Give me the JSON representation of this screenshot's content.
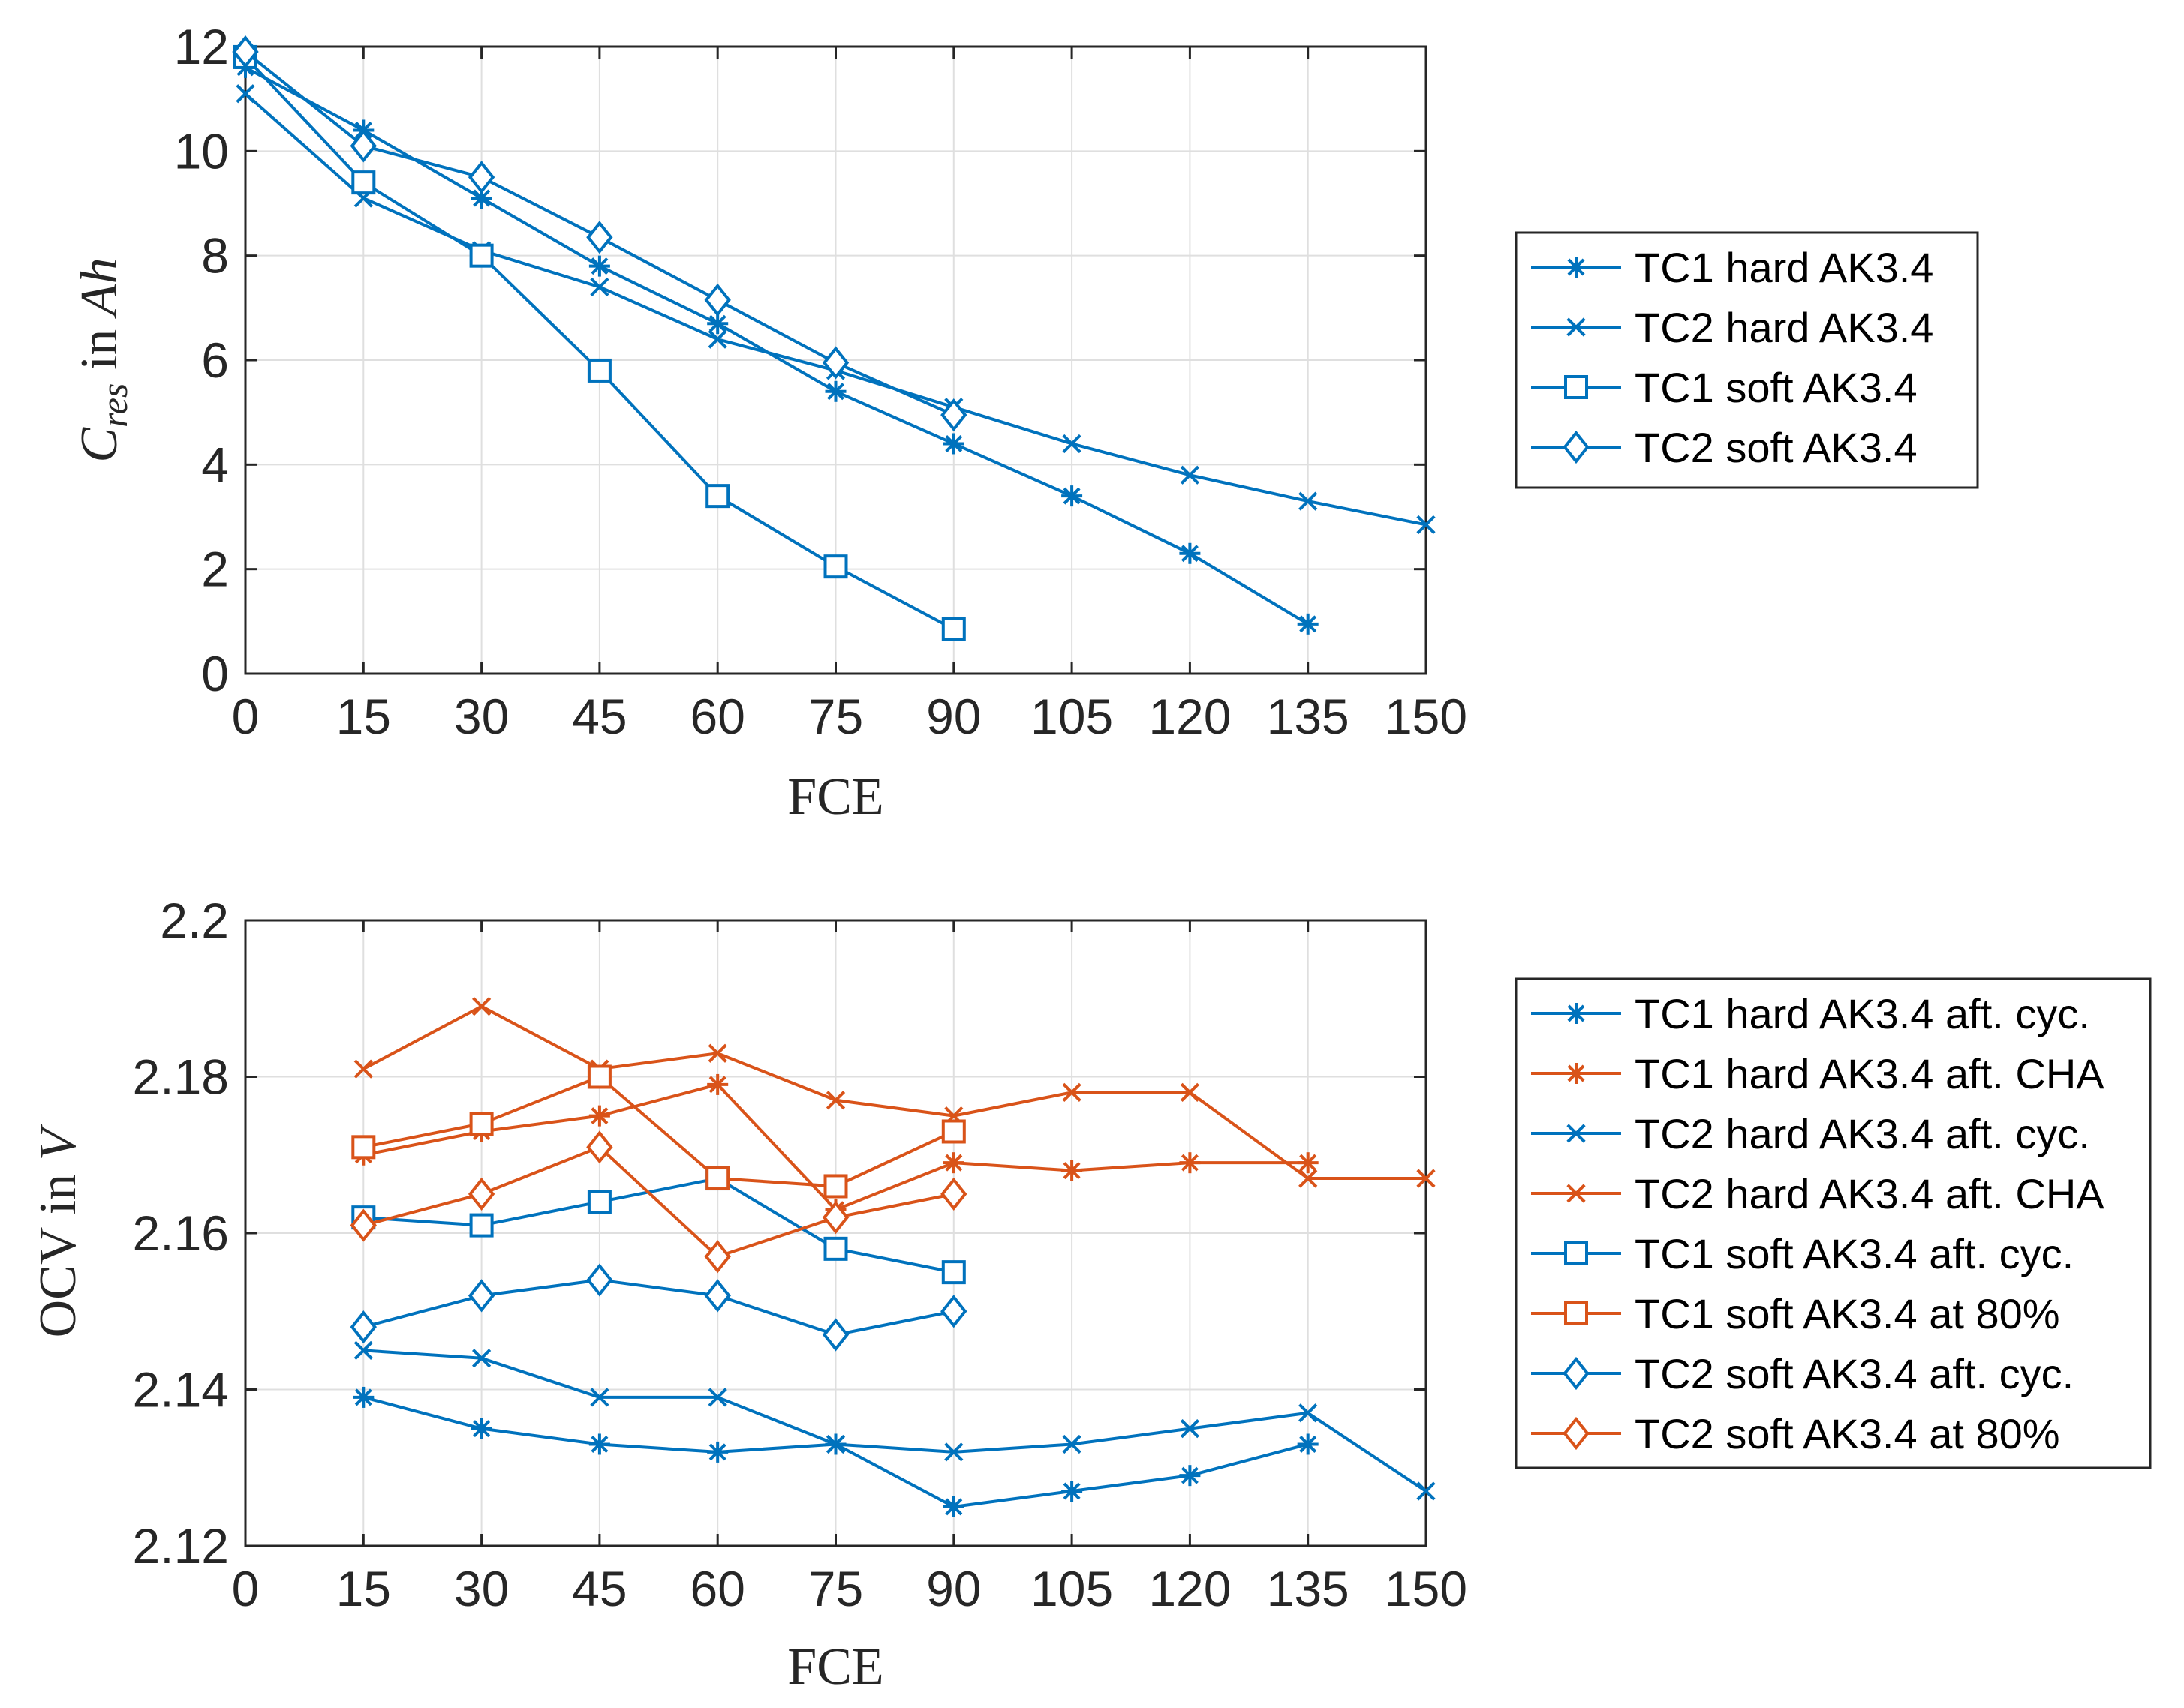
{
  "colors": {
    "blue": "#0072BD",
    "orange": "#D95319"
  },
  "chart_data": [
    {
      "type": "line",
      "xlabel": "FCE",
      "ylabel": {
        "symbol": "C",
        "subscript": "res",
        "mid": " in ",
        "unit": "Ah"
      },
      "xlim": [
        0,
        150
      ],
      "ylim": [
        0,
        12
      ],
      "xticks": [
        0,
        15,
        30,
        45,
        60,
        75,
        90,
        105,
        120,
        135,
        150
      ],
      "yticks": [
        0,
        2,
        4,
        6,
        8,
        10,
        12
      ],
      "ytick_labels": [
        "0",
        "2",
        "4",
        "6",
        "8",
        "10",
        "12"
      ],
      "grid": true,
      "legend_position": "right",
      "series": [
        {
          "name": "TC1 hard AK3.4",
          "marker": "asterisk",
          "color": "blue",
          "x": [
            0,
            15,
            30,
            45,
            60,
            75,
            90,
            105,
            120,
            135
          ],
          "y": [
            11.6,
            10.4,
            9.1,
            7.8,
            6.7,
            5.4,
            4.4,
            3.4,
            2.3,
            0.95
          ]
        },
        {
          "name": "TC2 hard AK3.4",
          "marker": "x",
          "color": "blue",
          "x": [
            0,
            15,
            30,
            45,
            60,
            75,
            90,
            105,
            120,
            135,
            150
          ],
          "y": [
            11.1,
            9.1,
            8.1,
            7.4,
            6.4,
            5.8,
            5.1,
            4.4,
            3.8,
            3.3,
            2.85
          ]
        },
        {
          "name": "TC1 soft AK3.4",
          "marker": "square",
          "color": "blue",
          "x": [
            0,
            15,
            30,
            45,
            60,
            75,
            90
          ],
          "y": [
            11.8,
            9.4,
            8.0,
            5.8,
            3.4,
            2.05,
            0.85
          ]
        },
        {
          "name": "TC2 soft AK3.4",
          "marker": "diamond",
          "color": "blue",
          "x": [
            0,
            15,
            30,
            45,
            60,
            75,
            90
          ],
          "y": [
            11.9,
            10.1,
            9.5,
            8.35,
            7.15,
            5.95,
            4.95
          ]
        }
      ]
    },
    {
      "type": "line",
      "xlabel": "FCE",
      "ylabel": {
        "symbol": "OCV",
        "subscript": "",
        "mid": " in ",
        "unit": "V"
      },
      "xlim": [
        0,
        150
      ],
      "ylim": [
        2.12,
        2.2
      ],
      "xticks": [
        0,
        15,
        30,
        45,
        60,
        75,
        90,
        105,
        120,
        135,
        150
      ],
      "yticks": [
        2.12,
        2.14,
        2.16,
        2.18,
        2.2
      ],
      "ytick_labels": [
        "2.12",
        "2.14",
        "2.16",
        "2.18",
        "2.2"
      ],
      "grid": true,
      "legend_position": "right",
      "series": [
        {
          "name": "TC1 hard AK3.4 aft. cyc.",
          "marker": "asterisk",
          "color": "blue",
          "x": [
            15,
            30,
            45,
            60,
            75,
            90,
            105,
            120,
            135
          ],
          "y": [
            2.139,
            2.135,
            2.133,
            2.132,
            2.133,
            2.125,
            2.127,
            2.129,
            2.133
          ]
        },
        {
          "name": "TC1 hard AK3.4 aft. CHA",
          "marker": "asterisk",
          "color": "orange",
          "x": [
            15,
            30,
            45,
            60,
            75,
            90,
            105,
            120,
            135
          ],
          "y": [
            2.17,
            2.173,
            2.175,
            2.179,
            2.163,
            2.169,
            2.168,
            2.169,
            2.169
          ]
        },
        {
          "name": "TC2 hard AK3.4 aft. cyc.",
          "marker": "x",
          "color": "blue",
          "x": [
            15,
            30,
            45,
            60,
            75,
            90,
            105,
            120,
            135,
            150
          ],
          "y": [
            2.145,
            2.144,
            2.139,
            2.139,
            2.133,
            2.132,
            2.133,
            2.135,
            2.137,
            2.127
          ]
        },
        {
          "name": "TC2 hard AK3.4 aft. CHA",
          "marker": "x",
          "color": "orange",
          "x": [
            15,
            30,
            45,
            60,
            75,
            90,
            105,
            120,
            135,
            150
          ],
          "y": [
            2.181,
            2.189,
            2.181,
            2.183,
            2.177,
            2.175,
            2.178,
            2.178,
            2.167,
            2.167
          ]
        },
        {
          "name": "TC1 soft AK3.4 aft. cyc.",
          "marker": "square",
          "color": "blue",
          "x": [
            15,
            30,
            45,
            60,
            75,
            90
          ],
          "y": [
            2.162,
            2.161,
            2.164,
            2.167,
            2.158,
            2.155
          ]
        },
        {
          "name": "TC1 soft AK3.4 at 80%",
          "marker": "square",
          "color": "orange",
          "x": [
            15,
            30,
            45,
            60,
            75,
            90
          ],
          "y": [
            2.171,
            2.174,
            2.18,
            2.167,
            2.166,
            2.173
          ]
        },
        {
          "name": "TC2 soft AK3.4 aft. cyc.",
          "marker": "diamond",
          "color": "blue",
          "x": [
            15,
            30,
            45,
            60,
            75,
            90
          ],
          "y": [
            2.148,
            2.152,
            2.154,
            2.152,
            2.147,
            2.15
          ]
        },
        {
          "name": "TC2 soft AK3.4 at 80%",
          "marker": "diamond",
          "color": "orange",
          "x": [
            15,
            30,
            45,
            60,
            75,
            90
          ],
          "y": [
            2.161,
            2.165,
            2.171,
            2.157,
            2.162,
            2.165
          ]
        }
      ]
    }
  ]
}
